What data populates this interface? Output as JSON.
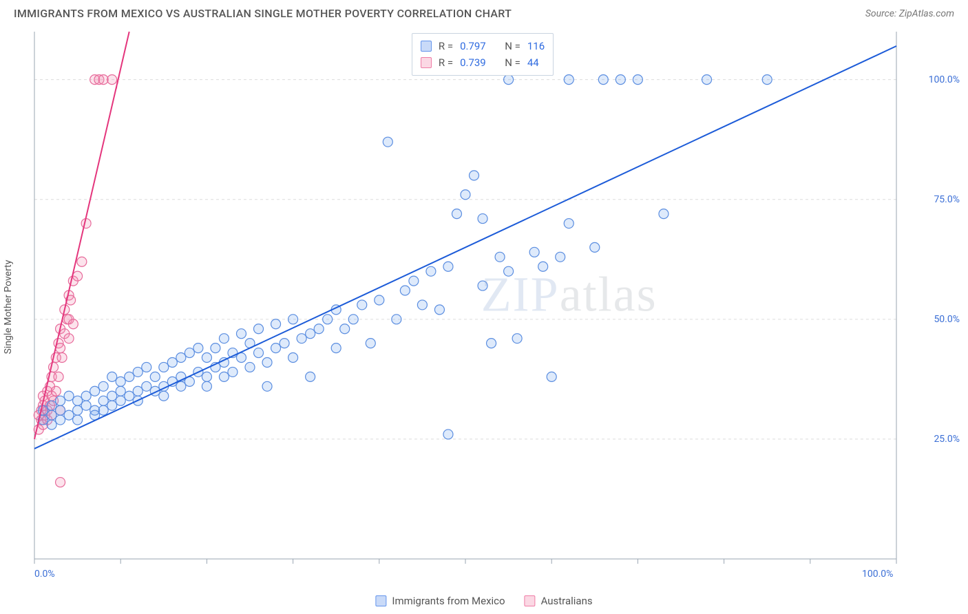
{
  "title": "IMMIGRANTS FROM MEXICO VS AUSTRALIAN SINGLE MOTHER POVERTY CORRELATION CHART",
  "source_label": "Source:",
  "source_name": "ZipAtlas.com",
  "y_axis_label": "Single Mother Poverty",
  "watermark_primary": "ZIP",
  "watermark_secondary": "atlas",
  "chart": {
    "type": "scatter",
    "background_color": "#ffffff",
    "grid_color": "#dcdcdc",
    "axis_color": "#9aa6b2",
    "label_color": "#3b6fd6",
    "label_fontsize": 14,
    "xlim": [
      0,
      100
    ],
    "ylim": [
      0,
      110
    ],
    "x_ticks": [
      0,
      10,
      20,
      30,
      40,
      50,
      60,
      70,
      80,
      90,
      100
    ],
    "x_tick_labels_shown": {
      "0": "0.0%",
      "100": "100.0%"
    },
    "y_grid": [
      {
        "v": 25,
        "label": "25.0%"
      },
      {
        "v": 50,
        "label": "50.0%"
      },
      {
        "v": 75,
        "label": "75.0%"
      },
      {
        "v": 100,
        "label": "100.0%"
      }
    ],
    "marker_radius": 7,
    "marker_opacity": 0.55,
    "series": {
      "mexico": {
        "label": "Immigrants from Mexico",
        "fill": "rgba(120,168,240,0.45)",
        "stroke": "#5a8de0",
        "trend_color": "#1c5bd8",
        "trend_width": 2,
        "r_value": "0.797",
        "n_value": "116",
        "trend": {
          "x1": 0,
          "y1": 23,
          "x2": 100,
          "y2": 107
        },
        "points": [
          [
            1,
            29
          ],
          [
            1,
            31
          ],
          [
            2,
            28
          ],
          [
            2,
            32
          ],
          [
            2,
            30
          ],
          [
            3,
            29
          ],
          [
            3,
            33
          ],
          [
            3,
            31
          ],
          [
            4,
            30
          ],
          [
            4,
            34
          ],
          [
            5,
            31
          ],
          [
            5,
            33
          ],
          [
            5,
            29
          ],
          [
            6,
            32
          ],
          [
            6,
            34
          ],
          [
            7,
            31
          ],
          [
            7,
            35
          ],
          [
            7,
            30
          ],
          [
            8,
            33
          ],
          [
            8,
            36
          ],
          [
            8,
            31
          ],
          [
            9,
            34
          ],
          [
            9,
            38
          ],
          [
            9,
            32
          ],
          [
            10,
            33
          ],
          [
            10,
            37
          ],
          [
            10,
            35
          ],
          [
            11,
            34
          ],
          [
            11,
            38
          ],
          [
            12,
            35
          ],
          [
            12,
            39
          ],
          [
            12,
            33
          ],
          [
            13,
            36
          ],
          [
            13,
            40
          ],
          [
            14,
            35
          ],
          [
            14,
            38
          ],
          [
            15,
            36
          ],
          [
            15,
            40
          ],
          [
            15,
            34
          ],
          [
            16,
            37
          ],
          [
            16,
            41
          ],
          [
            17,
            38
          ],
          [
            17,
            42
          ],
          [
            17,
            36
          ],
          [
            18,
            37
          ],
          [
            18,
            43
          ],
          [
            19,
            39
          ],
          [
            19,
            44
          ],
          [
            20,
            38
          ],
          [
            20,
            42
          ],
          [
            20,
            36
          ],
          [
            21,
            40
          ],
          [
            21,
            44
          ],
          [
            22,
            41
          ],
          [
            22,
            46
          ],
          [
            22,
            38
          ],
          [
            23,
            39
          ],
          [
            23,
            43
          ],
          [
            24,
            42
          ],
          [
            24,
            47
          ],
          [
            25,
            40
          ],
          [
            25,
            45
          ],
          [
            26,
            43
          ],
          [
            26,
            48
          ],
          [
            27,
            41
          ],
          [
            27,
            36
          ],
          [
            28,
            44
          ],
          [
            28,
            49
          ],
          [
            29,
            45
          ],
          [
            30,
            42
          ],
          [
            30,
            50
          ],
          [
            31,
            46
          ],
          [
            32,
            47
          ],
          [
            32,
            38
          ],
          [
            33,
            48
          ],
          [
            34,
            50
          ],
          [
            35,
            44
          ],
          [
            35,
            52
          ],
          [
            36,
            48
          ],
          [
            37,
            50
          ],
          [
            38,
            53
          ],
          [
            39,
            45
          ],
          [
            40,
            54
          ],
          [
            41,
            87
          ],
          [
            42,
            50
          ],
          [
            43,
            56
          ],
          [
            44,
            58
          ],
          [
            45,
            53
          ],
          [
            46,
            60
          ],
          [
            47,
            52
          ],
          [
            48,
            26
          ],
          [
            48,
            61
          ],
          [
            49,
            72
          ],
          [
            50,
            76
          ],
          [
            51,
            80
          ],
          [
            52,
            57
          ],
          [
            52,
            71
          ],
          [
            53,
            45
          ],
          [
            54,
            63
          ],
          [
            55,
            100
          ],
          [
            55,
            60
          ],
          [
            56,
            46
          ],
          [
            58,
            64
          ],
          [
            59,
            61
          ],
          [
            60,
            38
          ],
          [
            61,
            63
          ],
          [
            62,
            70
          ],
          [
            62,
            100
          ],
          [
            65,
            65
          ],
          [
            66,
            100
          ],
          [
            68,
            100
          ],
          [
            70,
            100
          ],
          [
            73,
            72
          ],
          [
            78,
            100
          ],
          [
            85,
            100
          ]
        ]
      },
      "australians": {
        "label": "Australians",
        "fill": "rgba(244,143,177,0.45)",
        "stroke": "#e76a9a",
        "trend_color": "#e4357c",
        "trend_width": 2,
        "r_value": "0.739",
        "n_value": "44",
        "trend": {
          "x1": 0,
          "y1": 25,
          "x2": 11,
          "y2": 110
        },
        "trend_dash_extension": {
          "x1": 9.5,
          "y1": 98,
          "x2": 11,
          "y2": 110
        },
        "points": [
          [
            0.5,
            27
          ],
          [
            0.5,
            30
          ],
          [
            0.8,
            29
          ],
          [
            0.8,
            31
          ],
          [
            1,
            28
          ],
          [
            1,
            32
          ],
          [
            1,
            34
          ],
          [
            1.2,
            30
          ],
          [
            1.2,
            33
          ],
          [
            1.5,
            29
          ],
          [
            1.5,
            35
          ],
          [
            1.5,
            31
          ],
          [
            1.8,
            32
          ],
          [
            1.8,
            36
          ],
          [
            2,
            30
          ],
          [
            2,
            34
          ],
          [
            2,
            38
          ],
          [
            2.2,
            33
          ],
          [
            2.2,
            40
          ],
          [
            2.5,
            35
          ],
          [
            2.5,
            42
          ],
          [
            2.8,
            38
          ],
          [
            2.8,
            45
          ],
          [
            3,
            31
          ],
          [
            3,
            44
          ],
          [
            3,
            48
          ],
          [
            3.2,
            42
          ],
          [
            3.5,
            47
          ],
          [
            3.5,
            52
          ],
          [
            3.8,
            50
          ],
          [
            4,
            50
          ],
          [
            4,
            55
          ],
          [
            4,
            46
          ],
          [
            4.2,
            54
          ],
          [
            4.5,
            58
          ],
          [
            4.5,
            49
          ],
          [
            5,
            59
          ],
          [
            5.5,
            62
          ],
          [
            6,
            70
          ],
          [
            7,
            100
          ],
          [
            7.5,
            100
          ],
          [
            8,
            100
          ],
          [
            9,
            100
          ],
          [
            3,
            16
          ]
        ]
      }
    },
    "legend_top": {
      "r_label": "R =",
      "n_label": "N ="
    }
  }
}
